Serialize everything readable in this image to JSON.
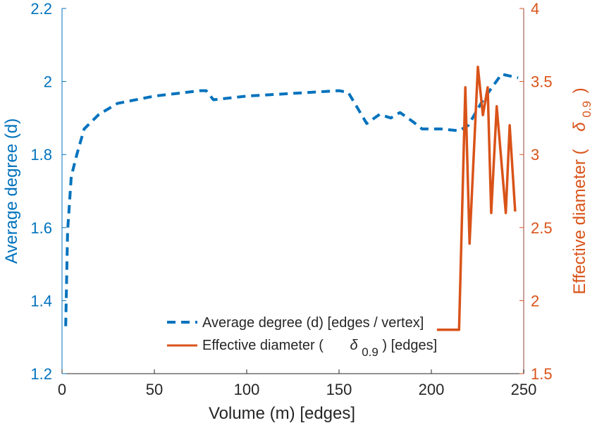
{
  "chart_data": {
    "type": "line",
    "title": "",
    "xlabel": "Volume (m) [edges]",
    "ylabel": "Average degree (d)",
    "ylabel_right": {
      "text": "Effective diameter (",
      "symbol": "δ",
      "sub": "0.9",
      "close": ")"
    },
    "xlim": [
      0,
      250
    ],
    "ylim": [
      1.2,
      2.2
    ],
    "ylim_right": [
      1.5,
      4
    ],
    "xticks": [
      "0",
      "50",
      "100",
      "150",
      "200",
      "250"
    ],
    "yticks": [
      "1.2",
      "1.4",
      "1.6",
      "1.8",
      "2",
      "2.2"
    ],
    "yticks_right": [
      "1.5",
      "2",
      "2.5",
      "3",
      "3.5",
      "4"
    ],
    "grid": false,
    "legend_position": "bottom-center",
    "colors": {
      "left": "#0072BD",
      "right": "#D95319",
      "text": "#262626"
    },
    "series": [
      {
        "name": "Average degree (d) [edges / vertex]",
        "axis": "left",
        "style": "dashed",
        "x": [
          2,
          3,
          5,
          8,
          12,
          20,
          30,
          50,
          75,
          78,
          82,
          100,
          150,
          155,
          165,
          172,
          178,
          183,
          190,
          195,
          205,
          215,
          220,
          228,
          238,
          247
        ],
        "y": [
          1.33,
          1.59,
          1.74,
          1.8,
          1.87,
          1.91,
          1.94,
          1.96,
          1.975,
          1.975,
          1.95,
          1.96,
          1.975,
          1.97,
          1.885,
          1.91,
          1.9,
          1.915,
          1.89,
          1.87,
          1.87,
          1.865,
          1.88,
          1.95,
          2.02,
          2.01
        ]
      },
      {
        "name": "Effective diameter (δ0.9) [edges]",
        "axis": "right",
        "style": "solid",
        "x": [
          203,
          215,
          218.4,
          220.7,
          225.2,
          227.9,
          230.5,
          232.4,
          235.4,
          240.3,
          242.4,
          245.4
        ],
        "y": [
          1.8,
          1.8,
          3.46,
          2.39,
          3.6,
          3.27,
          3.46,
          2.6,
          3.33,
          2.6,
          3.2,
          2.61
        ]
      }
    ],
    "legend": [
      {
        "text": "Average degree (d) [edges / vertex]"
      },
      {
        "text": "Effective diameter (",
        "symbol": "δ",
        "sub": "0.9",
        "close": ") [edges]"
      }
    ]
  }
}
